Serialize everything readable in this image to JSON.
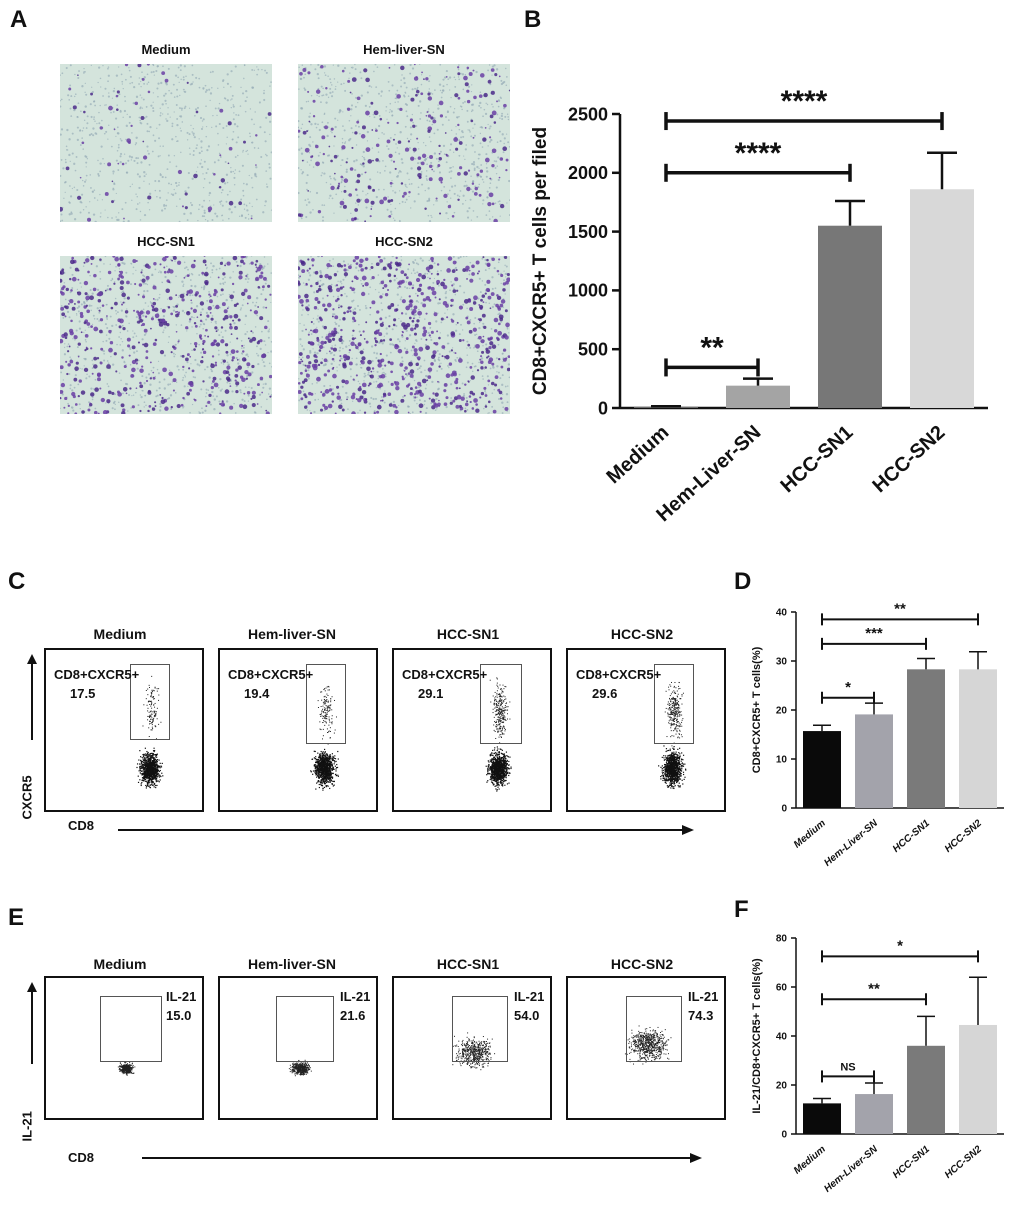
{
  "panels": {
    "A": {
      "letter": "A",
      "images": [
        {
          "title": "Medium",
          "density": 0.05
        },
        {
          "title": "Hem-liver-SN",
          "density": 0.3
        },
        {
          "title": "HCC-SN1",
          "density": 0.75
        },
        {
          "title": "HCC-SN2",
          "density": 0.95
        }
      ]
    },
    "B": {
      "letter": "B"
    },
    "C": {
      "letter": "C",
      "y_axis_label": "CXCR5",
      "x_axis_label": "CD8",
      "plots": [
        {
          "title": "Medium",
          "gate_label": "CD8+CXCR5+",
          "value": "17.5"
        },
        {
          "title": "Hem-liver-SN",
          "gate_label": "CD8+CXCR5+",
          "value": "19.4"
        },
        {
          "title": "HCC-SN1",
          "gate_label": "CD8+CXCR5+",
          "value": "29.1"
        },
        {
          "title": "HCC-SN2",
          "gate_label": "CD8+CXCR5+",
          "value": "29.6"
        }
      ]
    },
    "D": {
      "letter": "D"
    },
    "E": {
      "letter": "E",
      "y_axis_label": "IL-21",
      "x_axis_label": "CD8",
      "plots": [
        {
          "title": "Medium",
          "gate_label": "IL-21",
          "value": "15.0"
        },
        {
          "title": "Hem-liver-SN",
          "gate_label": "IL-21",
          "value": "21.6"
        },
        {
          "title": "HCC-SN1",
          "gate_label": "IL-21",
          "value": "54.0"
        },
        {
          "title": "HCC-SN2",
          "gate_label": "IL-21",
          "value": "74.3"
        }
      ]
    },
    "F": {
      "letter": "F"
    }
  },
  "chart_data": [
    {
      "panel": "B",
      "type": "bar",
      "categories": [
        "Medium",
        "Hem-Liver-SN",
        "HCC-SN1",
        "HCC-SN2"
      ],
      "values": [
        10,
        190,
        1550,
        1860
      ],
      "errors": [
        5,
        60,
        210,
        310
      ],
      "colors": [
        "#6a6a6a",
        "#a4a4a4",
        "#777777",
        "#d8d8d8"
      ],
      "ylabel": "CD8+CXCR5+ T cells per filed",
      "ylim": [
        0,
        2500
      ],
      "yticks": [
        "0",
        "500",
        "1000",
        "1500",
        "2000",
        "2500"
      ],
      "significance": [
        {
          "from": 0,
          "to": 1,
          "y": 345,
          "label": "**"
        },
        {
          "from": 0,
          "to": 2,
          "y": 2000,
          "label": "****"
        },
        {
          "from": 0,
          "to": 3,
          "y": 2440,
          "label": "****"
        }
      ]
    },
    {
      "panel": "D",
      "type": "bar",
      "categories": [
        "Medium",
        "Hem-Liver-SN",
        "HCC-SN1",
        "HCC-SN2"
      ],
      "values": [
        15.7,
        19.1,
        28.3,
        28.3
      ],
      "errors": [
        1.2,
        2.3,
        2.2,
        3.6
      ],
      "colors": [
        "#0a0a0a",
        "#a3a3ab",
        "#7a7a7a",
        "#d6d6d6"
      ],
      "ylabel": "CD8+CXCR5+ T cells(%)",
      "ylim": [
        0,
        40
      ],
      "yticks": [
        "0",
        "10",
        "20",
        "30",
        "40"
      ],
      "significance": [
        {
          "from": 0,
          "to": 1,
          "y": 22.5,
          "label": "*"
        },
        {
          "from": 0,
          "to": 2,
          "y": 33.5,
          "label": "***"
        },
        {
          "from": 0,
          "to": 3,
          "y": 38.5,
          "label": "**"
        }
      ]
    },
    {
      "panel": "F",
      "type": "bar",
      "categories": [
        "Medium",
        "Hem-Liver-SN",
        "HCC-SN1",
        "HCC-SN2"
      ],
      "values": [
        12.5,
        16.3,
        36.0,
        44.5
      ],
      "errors": [
        2.0,
        4.5,
        12.0,
        19.5
      ],
      "colors": [
        "#0a0a0a",
        "#a3a3ab",
        "#7a7a7a",
        "#d6d6d6"
      ],
      "ylabel": "IL-21/CD8+CXCR5+ T cells(%)",
      "ylim": [
        0,
        80
      ],
      "yticks": [
        "0",
        "20",
        "40",
        "60",
        "80"
      ],
      "significance": [
        {
          "from": 0,
          "to": 1,
          "y": 23.5,
          "label": "NS"
        },
        {
          "from": 0,
          "to": 2,
          "y": 55.0,
          "label": "**"
        },
        {
          "from": 0,
          "to": 3,
          "y": 72.5,
          "label": "*"
        }
      ]
    }
  ]
}
